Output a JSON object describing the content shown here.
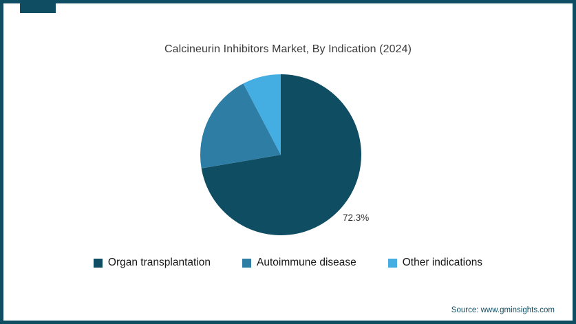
{
  "title": "Calcineurin Inhibitors Market, By Indication (2024)",
  "source": "Source: www.gminsights.com",
  "colors": {
    "border": "#0e4d62",
    "organ_transplantation": "#0e4d62",
    "autoimmune_disease": "#2e7da4",
    "other_indications": "#44ade2"
  },
  "chart_data": {
    "type": "pie",
    "title": "Calcineurin Inhibitors Market, By Indication (2024)",
    "labels": [
      "Organ transplantation",
      "Autoimmune disease",
      "Other indications"
    ],
    "values": [
      72.3,
      20.0,
      7.7
    ],
    "colors": [
      "#0e4d62",
      "#2e7da4",
      "#44ade2"
    ],
    "data_labels": [
      "72.3%",
      "",
      ""
    ],
    "start_angle_deg": 0,
    "direction": "clockwise",
    "legend_position": "bottom",
    "source": "Source: www.gminsights.com"
  }
}
